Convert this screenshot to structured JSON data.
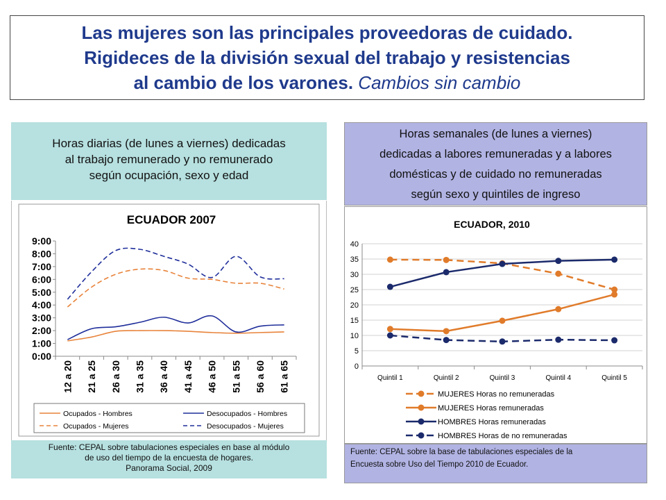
{
  "title": {
    "line1": "Las mujeres son las principales proveedoras de cuidado.",
    "line2": "Rigideces de la división sexual del trabajo y resistencias",
    "line3": "al cambio de los varones.",
    "line3_italic": "Cambios sin cambio"
  },
  "left_caption": {
    "line1": "Horas diarias (de lunes a viernes) dedicadas",
    "line2": "al trabajo remunerado y no remunerado",
    "line3": "según ocupación, sexo y edad"
  },
  "right_caption": {
    "line1": "Horas semanales (de lunes a viernes)",
    "line2": "dedicadas a labores remuneradas y a labores",
    "line3": "domésticas y de cuidado no remuneradas",
    "line4": "según sexo y quintiles de ingreso"
  },
  "left_source": {
    "line1": "Fuente: CEPAL sobre tabulaciones especiales en base al módulo",
    "line2": "de uso del tiempo de la encuesta de hogares.",
    "line3": "Panorama  Social, 2009"
  },
  "right_source": {
    "line1": "Fuente: CEPAL sobre la base de tabulaciones especiales de la",
    "line2": "Encuesta sobre Uso del Tiempo 2010 de Ecuador."
  },
  "chart_data": [
    {
      "type": "line",
      "title": "ECUADOR 2007",
      "categories": [
        "12 a 20",
        "21 a 25",
        "26 a 30",
        "31 a 35",
        "36 a 40",
        "41 a 45",
        "46 a 50",
        "51 a 55",
        "56 a 60",
        "61 a 65"
      ],
      "y_ticks": [
        "0:00",
        "1:00",
        "2:00",
        "3:00",
        "4:00",
        "5:00",
        "6:00",
        "7:00",
        "8:00",
        "9:00"
      ],
      "ylim": [
        0,
        9
      ],
      "legend_position": "bottom",
      "series": [
        {
          "name": "Ocupados - Hombres",
          "color": "#e8833a",
          "dash": false,
          "values": [
            1.2,
            1.5,
            1.95,
            2.0,
            2.0,
            1.95,
            1.85,
            1.8,
            1.85,
            1.9
          ]
        },
        {
          "name": "Desocupados - Hombres",
          "color": "#1f2e9a",
          "dash": false,
          "values": [
            1.3,
            2.15,
            2.3,
            2.65,
            3.05,
            2.6,
            3.15,
            1.9,
            2.35,
            2.45
          ]
        },
        {
          "name": "Ocupados - Mujeres",
          "color": "#e8833a",
          "dash": true,
          "values": [
            3.85,
            5.4,
            6.4,
            6.8,
            6.7,
            6.1,
            6.0,
            5.7,
            5.7,
            5.25
          ]
        },
        {
          "name": "Desocupados - Mujeres",
          "color": "#1f2e9a",
          "dash": true,
          "values": [
            4.45,
            6.6,
            8.25,
            8.35,
            7.8,
            7.2,
            6.15,
            7.8,
            6.2,
            6.05
          ]
        }
      ]
    },
    {
      "type": "line",
      "title": "ECUADOR, 2010",
      "categories": [
        "Quintil 1",
        "Quintil 2",
        "Quintil 3",
        "Quintil 4",
        "Quintil 5"
      ],
      "y_ticks": [
        "0",
        "5",
        "10",
        "15",
        "20",
        "25",
        "30",
        "35",
        "40"
      ],
      "ylim": [
        0,
        40
      ],
      "legend_position": "bottom",
      "series": [
        {
          "name": "MUJERES Horas no remuneradas",
          "color": "#e07b2a",
          "dash": true,
          "values": [
            34.8,
            34.7,
            33.6,
            30.2,
            25.0
          ]
        },
        {
          "name": "MUJERES Horas remuneradas",
          "color": "#e07b2a",
          "dash": false,
          "values": [
            12.1,
            11.4,
            14.8,
            18.6,
            23.4
          ]
        },
        {
          "name": "HOMBRES Horas remuneradas",
          "color": "#1b2a6b",
          "dash": false,
          "values": [
            25.9,
            30.7,
            33.4,
            34.4,
            34.8
          ]
        },
        {
          "name": "HOMBRES Horas de no remuneradas",
          "color": "#1b2a6b",
          "dash": true,
          "values": [
            10.0,
            8.5,
            8.0,
            8.6,
            8.4
          ]
        }
      ]
    }
  ]
}
